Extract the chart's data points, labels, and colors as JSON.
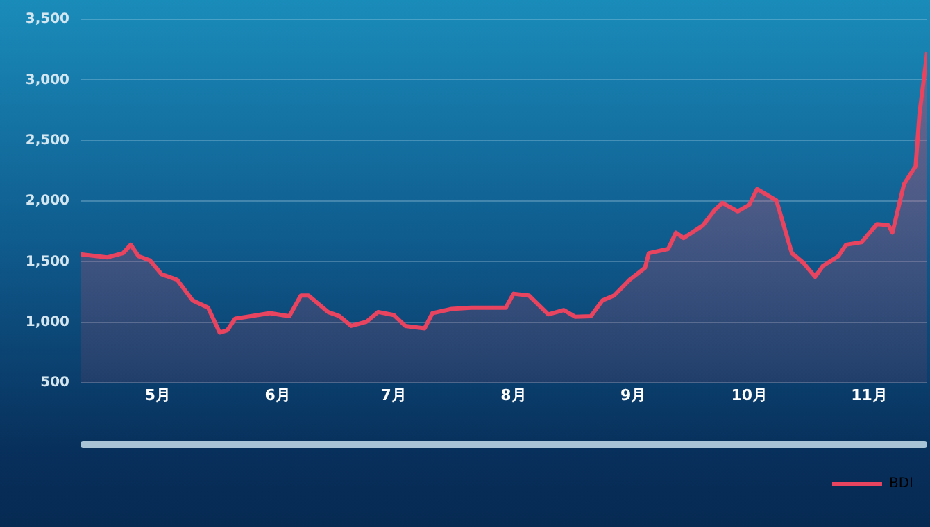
{
  "chart_data": {
    "type": "area",
    "x": [
      "--04-11",
      "--04-18",
      "--04-22",
      "--04-24",
      "--04-26",
      "--04-29",
      "--05-02",
      "--05-06",
      "--05-10",
      "--05-14",
      "--05-17",
      "--05-19",
      "--05-21",
      "--05-25",
      "--05-30",
      "--06-04",
      "--06-07",
      "--06-09",
      "--06-14",
      "--06-17",
      "--06-20",
      "--06-24",
      "--06-27",
      "--07-01",
      "--07-04",
      "--07-09",
      "--07-11",
      "--07-16",
      "--07-21",
      "--07-30",
      "--08-01",
      "--08-05",
      "--08-10",
      "--08-14",
      "--08-17",
      "--08-21",
      "--08-24",
      "--08-27",
      "--08-31",
      "--09-04",
      "--09-05",
      "--09-10",
      "--09-12",
      "--09-14",
      "--09-19",
      "--09-22",
      "--09-24",
      "--09-28",
      "--10-01",
      "--10-03",
      "--10-08",
      "--10-12",
      "--10-15",
      "--10-18",
      "--10-20",
      "--10-24",
      "--10-26",
      "--10-30",
      "--11-03",
      "--11-06",
      "--11-07",
      "--11-10",
      "--11-13",
      "--11-14",
      "--11-16"
    ],
    "series": [
      {
        "name": "BDI",
        "color": "#e8435f",
        "values": [
          1560,
          1535,
          1570,
          1640,
          1545,
          1510,
          1395,
          1350,
          1180,
          1120,
          915,
          935,
          1030,
          1050,
          1075,
          1050,
          1220,
          1220,
          1085,
          1050,
          970,
          1005,
          1085,
          1060,
          970,
          950,
          1075,
          1110,
          1120,
          1120,
          1235,
          1220,
          1065,
          1100,
          1045,
          1050,
          1180,
          1220,
          1350,
          1450,
          1570,
          1605,
          1740,
          1695,
          1800,
          1925,
          1985,
          1915,
          1970,
          2100,
          2005,
          1570,
          1490,
          1375,
          1465,
          1545,
          1640,
          1660,
          1810,
          1800,
          1740,
          2140,
          2290,
          2720,
          3230
        ]
      }
    ],
    "xlim": [
      "--04-11",
      "--11-16"
    ],
    "xticks": [
      {
        "value": "--05-01",
        "label": "5月"
      },
      {
        "value": "--06-01",
        "label": "6月"
      },
      {
        "value": "--07-01",
        "label": "7月"
      },
      {
        "value": "--08-01",
        "label": "8月"
      },
      {
        "value": "--09-01",
        "label": "9月"
      },
      {
        "value": "--10-01",
        "label": "10月"
      },
      {
        "value": "--11-01",
        "label": "11月"
      }
    ],
    "ylim": [
      500,
      3500
    ],
    "yticks": [
      500,
      {
        "value": 1000,
        "label": "1,000"
      },
      {
        "value": 1500,
        "label": "1,500"
      },
      {
        "value": 2000,
        "label": "2,000"
      },
      {
        "value": 2500,
        "label": "2,500"
      },
      {
        "value": 3000,
        "label": "3,000"
      },
      {
        "value": 3500,
        "label": "3,500"
      }
    ],
    "grid": "y",
    "legend": "bottom right",
    "marker": "none",
    "line_style": "solid"
  }
}
